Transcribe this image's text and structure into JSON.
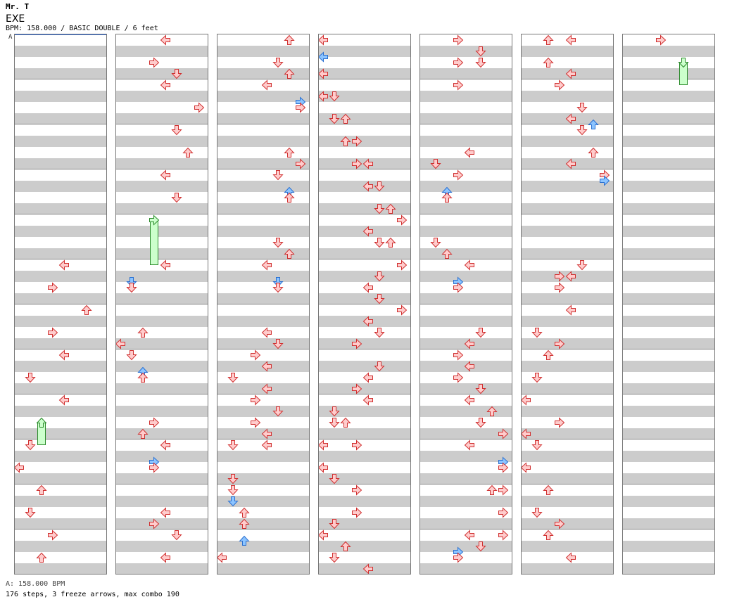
{
  "header": {
    "artist": "Mr. T",
    "title": "EXE",
    "info": "BPM: 158.000 / BASIC DOUBLE / 6 feet",
    "bpm_marker": "A"
  },
  "footer": {
    "bpm_line": "A: 158.000 BPM",
    "stats": "176 steps, 3 freeze arrows, max combo 190"
  },
  "colors": {
    "red_fill": "#ffcccc",
    "red_stroke": "#d03030",
    "blue_fill": "#8cc4ff",
    "blue_stroke": "#2a6fd0",
    "freeze_fill": "#ccffcc",
    "freeze_stroke": "#2a8a2a",
    "band": "#cccccc"
  },
  "chart_data": {
    "type": "step_chart",
    "lanes": 8,
    "lane_order": [
      "P1-left",
      "P1-down",
      "P1-up",
      "P1-right",
      "P2-left",
      "P2-down",
      "P2-up",
      "P2-right"
    ],
    "columns": 7,
    "measures_per_column": 12,
    "beats_per_measure": 4,
    "notes": [
      {
        "c": 0,
        "b": 20,
        "l": 4
      },
      {
        "c": 0,
        "b": 22,
        "l": 3
      },
      {
        "c": 0,
        "b": 24,
        "l": 6
      },
      {
        "c": 0,
        "b": 26,
        "l": 3
      },
      {
        "c": 0,
        "b": 28,
        "l": 4
      },
      {
        "c": 0,
        "b": 30,
        "l": 1
      },
      {
        "c": 0,
        "b": 32,
        "l": 4
      },
      {
        "c": 0,
        "b": 34,
        "l": 2,
        "t": "freeze_head"
      },
      {
        "c": 0,
        "b": 36,
        "l": 1
      },
      {
        "c": 0,
        "b": 38,
        "l": 0
      },
      {
        "c": 0,
        "b": 40,
        "l": 2
      },
      {
        "c": 0,
        "b": 42,
        "l": 1
      },
      {
        "c": 0,
        "b": 44,
        "l": 3
      },
      {
        "c": 0,
        "b": 46,
        "l": 2
      },
      {
        "c": 1,
        "b": 0,
        "l": 4
      },
      {
        "c": 1,
        "b": 2,
        "l": 3
      },
      {
        "c": 1,
        "b": 3,
        "l": 5
      },
      {
        "c": 1,
        "b": 4,
        "l": 4
      },
      {
        "c": 1,
        "b": 6,
        "l": 7
      },
      {
        "c": 1,
        "b": 8,
        "l": 5
      },
      {
        "c": 1,
        "b": 10,
        "l": 6
      },
      {
        "c": 1,
        "b": 12,
        "l": 4
      },
      {
        "c": 1,
        "b": 14,
        "l": 5
      },
      {
        "c": 1,
        "b": 16,
        "l": 3,
        "t": "freeze_head"
      },
      {
        "c": 1,
        "b": 20,
        "l": 4
      },
      {
        "c": 1,
        "b": 21.5,
        "l": 1,
        "t": "blue"
      },
      {
        "c": 1,
        "b": 22,
        "l": 1
      },
      {
        "c": 1,
        "b": 26,
        "l": 2
      },
      {
        "c": 1,
        "b": 27,
        "l": 0
      },
      {
        "c": 1,
        "b": 28,
        "l": 1
      },
      {
        "c": 1,
        "b": 29.5,
        "l": 2,
        "t": "blue"
      },
      {
        "c": 1,
        "b": 30,
        "l": 2
      },
      {
        "c": 1,
        "b": 34,
        "l": 3
      },
      {
        "c": 1,
        "b": 35,
        "l": 2
      },
      {
        "c": 1,
        "b": 36,
        "l": 4
      },
      {
        "c": 1,
        "b": 37.5,
        "l": 3,
        "t": "blue"
      },
      {
        "c": 1,
        "b": 38,
        "l": 3
      },
      {
        "c": 1,
        "b": 42,
        "l": 4
      },
      {
        "c": 1,
        "b": 43,
        "l": 3
      },
      {
        "c": 1,
        "b": 44,
        "l": 5
      },
      {
        "c": 1,
        "b": 46,
        "l": 4
      },
      {
        "c": 2,
        "b": 0,
        "l": 6
      },
      {
        "c": 2,
        "b": 2,
        "l": 5
      },
      {
        "c": 2,
        "b": 3,
        "l": 6
      },
      {
        "c": 2,
        "b": 4,
        "l": 4
      },
      {
        "c": 2,
        "b": 5.5,
        "l": 7,
        "t": "blue"
      },
      {
        "c": 2,
        "b": 6,
        "l": 7
      },
      {
        "c": 2,
        "b": 10,
        "l": 6
      },
      {
        "c": 2,
        "b": 11,
        "l": 7
      },
      {
        "c": 2,
        "b": 12,
        "l": 5
      },
      {
        "c": 2,
        "b": 13.5,
        "l": 6,
        "t": "blue"
      },
      {
        "c": 2,
        "b": 14,
        "l": 6
      },
      {
        "c": 2,
        "b": 18,
        "l": 5
      },
      {
        "c": 2,
        "b": 19,
        "l": 6
      },
      {
        "c": 2,
        "b": 20,
        "l": 4
      },
      {
        "c": 2,
        "b": 21.5,
        "l": 5,
        "t": "blue"
      },
      {
        "c": 2,
        "b": 22,
        "l": 5
      },
      {
        "c": 2,
        "b": 26,
        "l": 4
      },
      {
        "c": 2,
        "b": 27,
        "l": 5
      },
      {
        "c": 2,
        "b": 28,
        "l": 3
      },
      {
        "c": 2,
        "b": 29,
        "l": 4
      },
      {
        "c": 2,
        "b": 30,
        "l": 1
      },
      {
        "c": 2,
        "b": 31,
        "l": 4
      },
      {
        "c": 2,
        "b": 32,
        "l": 3
      },
      {
        "c": 2,
        "b": 33,
        "l": 5
      },
      {
        "c": 2,
        "b": 34,
        "l": 3
      },
      {
        "c": 2,
        "b": 35,
        "l": 4
      },
      {
        "c": 2,
        "b": 36,
        "l": 1
      },
      {
        "c": 2,
        "b": 36,
        "l": 4
      },
      {
        "c": 2,
        "b": 39,
        "l": 1
      },
      {
        "c": 2,
        "b": 40,
        "l": 1
      },
      {
        "c": 2,
        "b": 41,
        "l": 1,
        "t": "blue"
      },
      {
        "c": 2,
        "b": 42,
        "l": 2
      },
      {
        "c": 2,
        "b": 43,
        "l": 2
      },
      {
        "c": 2,
        "b": 44.5,
        "l": 2,
        "t": "blue"
      },
      {
        "c": 2,
        "b": 46,
        "l": 0
      },
      {
        "c": 3,
        "b": 0,
        "l": 0
      },
      {
        "c": 3,
        "b": 1.5,
        "l": 0,
        "t": "blue"
      },
      {
        "c": 3,
        "b": 3,
        "l": 0
      },
      {
        "c": 3,
        "b": 5,
        "l": 0
      },
      {
        "c": 3,
        "b": 5,
        "l": 1
      },
      {
        "c": 3,
        "b": 7,
        "l": 1
      },
      {
        "c": 3,
        "b": 7,
        "l": 2
      },
      {
        "c": 3,
        "b": 9,
        "l": 2
      },
      {
        "c": 3,
        "b": 9,
        "l": 3
      },
      {
        "c": 3,
        "b": 11,
        "l": 3
      },
      {
        "c": 3,
        "b": 11,
        "l": 4
      },
      {
        "c": 3,
        "b": 13,
        "l": 4
      },
      {
        "c": 3,
        "b": 13,
        "l": 5
      },
      {
        "c": 3,
        "b": 15,
        "l": 5
      },
      {
        "c": 3,
        "b": 15,
        "l": 6
      },
      {
        "c": 3,
        "b": 16,
        "l": 7
      },
      {
        "c": 3,
        "b": 17,
        "l": 4
      },
      {
        "c": 3,
        "b": 18,
        "l": 5
      },
      {
        "c": 3,
        "b": 18,
        "l": 6
      },
      {
        "c": 3,
        "b": 20,
        "l": 7
      },
      {
        "c": 3,
        "b": 21,
        "l": 5
      },
      {
        "c": 3,
        "b": 22,
        "l": 4
      },
      {
        "c": 3,
        "b": 23,
        "l": 5
      },
      {
        "c": 3,
        "b": 24,
        "l": 7
      },
      {
        "c": 3,
        "b": 25,
        "l": 4
      },
      {
        "c": 3,
        "b": 26,
        "l": 5
      },
      {
        "c": 3,
        "b": 27,
        "l": 3
      },
      {
        "c": 3,
        "b": 29,
        "l": 5
      },
      {
        "c": 3,
        "b": 30,
        "l": 4
      },
      {
        "c": 3,
        "b": 31,
        "l": 3
      },
      {
        "c": 3,
        "b": 32,
        "l": 4
      },
      {
        "c": 3,
        "b": 33,
        "l": 1
      },
      {
        "c": 3,
        "b": 34,
        "l": 1
      },
      {
        "c": 3,
        "b": 34,
        "l": 2
      },
      {
        "c": 3,
        "b": 36,
        "l": 0
      },
      {
        "c": 3,
        "b": 36,
        "l": 3
      },
      {
        "c": 3,
        "b": 38,
        "l": 0
      },
      {
        "c": 3,
        "b": 39,
        "l": 1
      },
      {
        "c": 3,
        "b": 40,
        "l": 3
      },
      {
        "c": 3,
        "b": 42,
        "l": 3
      },
      {
        "c": 3,
        "b": 43,
        "l": 1
      },
      {
        "c": 3,
        "b": 44,
        "l": 0
      },
      {
        "c": 3,
        "b": 45,
        "l": 2
      },
      {
        "c": 3,
        "b": 46,
        "l": 1
      },
      {
        "c": 3,
        "b": 47,
        "l": 4
      },
      {
        "c": 4,
        "b": 0,
        "l": 3
      },
      {
        "c": 4,
        "b": 1,
        "l": 5
      },
      {
        "c": 4,
        "b": 2,
        "l": 3
      },
      {
        "c": 4,
        "b": 2,
        "l": 5
      },
      {
        "c": 4,
        "b": 4,
        "l": 3
      },
      {
        "c": 4,
        "b": 10,
        "l": 4
      },
      {
        "c": 4,
        "b": 11,
        "l": 1
      },
      {
        "c": 4,
        "b": 12,
        "l": 3
      },
      {
        "c": 4,
        "b": 13.5,
        "l": 2,
        "t": "blue"
      },
      {
        "c": 4,
        "b": 14,
        "l": 2
      },
      {
        "c": 4,
        "b": 18,
        "l": 1
      },
      {
        "c": 4,
        "b": 19,
        "l": 2
      },
      {
        "c": 4,
        "b": 20,
        "l": 4
      },
      {
        "c": 4,
        "b": 21.5,
        "l": 3,
        "t": "blue"
      },
      {
        "c": 4,
        "b": 22,
        "l": 3
      },
      {
        "c": 4,
        "b": 26,
        "l": 5
      },
      {
        "c": 4,
        "b": 27,
        "l": 4
      },
      {
        "c": 4,
        "b": 28,
        "l": 3
      },
      {
        "c": 4,
        "b": 29,
        "l": 4
      },
      {
        "c": 4,
        "b": 30,
        "l": 3
      },
      {
        "c": 4,
        "b": 31,
        "l": 5
      },
      {
        "c": 4,
        "b": 32,
        "l": 4
      },
      {
        "c": 4,
        "b": 33,
        "l": 6
      },
      {
        "c": 4,
        "b": 34,
        "l": 5
      },
      {
        "c": 4,
        "b": 35,
        "l": 7
      },
      {
        "c": 4,
        "b": 36,
        "l": 4
      },
      {
        "c": 4,
        "b": 37.5,
        "l": 7,
        "t": "blue"
      },
      {
        "c": 4,
        "b": 38,
        "l": 7
      },
      {
        "c": 4,
        "b": 40,
        "l": 6
      },
      {
        "c": 4,
        "b": 40,
        "l": 7
      },
      {
        "c": 4,
        "b": 42,
        "l": 7
      },
      {
        "c": 4,
        "b": 44,
        "l": 4
      },
      {
        "c": 4,
        "b": 44,
        "l": 7
      },
      {
        "c": 4,
        "b": 45,
        "l": 5
      },
      {
        "c": 4,
        "b": 45.5,
        "l": 3,
        "t": "blue"
      },
      {
        "c": 4,
        "b": 46,
        "l": 3
      },
      {
        "c": 5,
        "b": 0,
        "l": 2
      },
      {
        "c": 5,
        "b": 0,
        "l": 4
      },
      {
        "c": 5,
        "b": 2,
        "l": 2
      },
      {
        "c": 5,
        "b": 3,
        "l": 4
      },
      {
        "c": 5,
        "b": 4,
        "l": 3
      },
      {
        "c": 5,
        "b": 6,
        "l": 5
      },
      {
        "c": 5,
        "b": 7,
        "l": 4
      },
      {
        "c": 5,
        "b": 7.5,
        "l": 6,
        "t": "blue"
      },
      {
        "c": 5,
        "b": 8,
        "l": 5
      },
      {
        "c": 5,
        "b": 10,
        "l": 6
      },
      {
        "c": 5,
        "b": 11,
        "l": 4
      },
      {
        "c": 5,
        "b": 12,
        "l": 7
      },
      {
        "c": 5,
        "b": 12.5,
        "l": 7,
        "t": "blue"
      },
      {
        "c": 5,
        "b": 20,
        "l": 5
      },
      {
        "c": 5,
        "b": 21,
        "l": 3
      },
      {
        "c": 5,
        "b": 21,
        "l": 4
      },
      {
        "c": 5,
        "b": 22,
        "l": 3
      },
      {
        "c": 5,
        "b": 24,
        "l": 4
      },
      {
        "c": 5,
        "b": 26,
        "l": 1
      },
      {
        "c": 5,
        "b": 27,
        "l": 3
      },
      {
        "c": 5,
        "b": 28,
        "l": 2
      },
      {
        "c": 5,
        "b": 30,
        "l": 1
      },
      {
        "c": 5,
        "b": 32,
        "l": 0
      },
      {
        "c": 5,
        "b": 34,
        "l": 3
      },
      {
        "c": 5,
        "b": 35,
        "l": 0
      },
      {
        "c": 5,
        "b": 36,
        "l": 1
      },
      {
        "c": 5,
        "b": 38,
        "l": 0
      },
      {
        "c": 5,
        "b": 40,
        "l": 2
      },
      {
        "c": 5,
        "b": 42,
        "l": 1
      },
      {
        "c": 5,
        "b": 43,
        "l": 3
      },
      {
        "c": 5,
        "b": 44,
        "l": 2
      },
      {
        "c": 5,
        "b": 46,
        "l": 4
      },
      {
        "c": 6,
        "b": 0,
        "l": 3
      },
      {
        "c": 6,
        "b": 2,
        "l": 5,
        "t": "freeze_head"
      }
    ],
    "freezes": [
      {
        "c": 0,
        "from": 34,
        "to": 36,
        "l": 2
      },
      {
        "c": 1,
        "from": 16,
        "to": 20,
        "l": 3
      },
      {
        "c": 6,
        "from": 2,
        "to": 4,
        "l": 5
      }
    ]
  }
}
